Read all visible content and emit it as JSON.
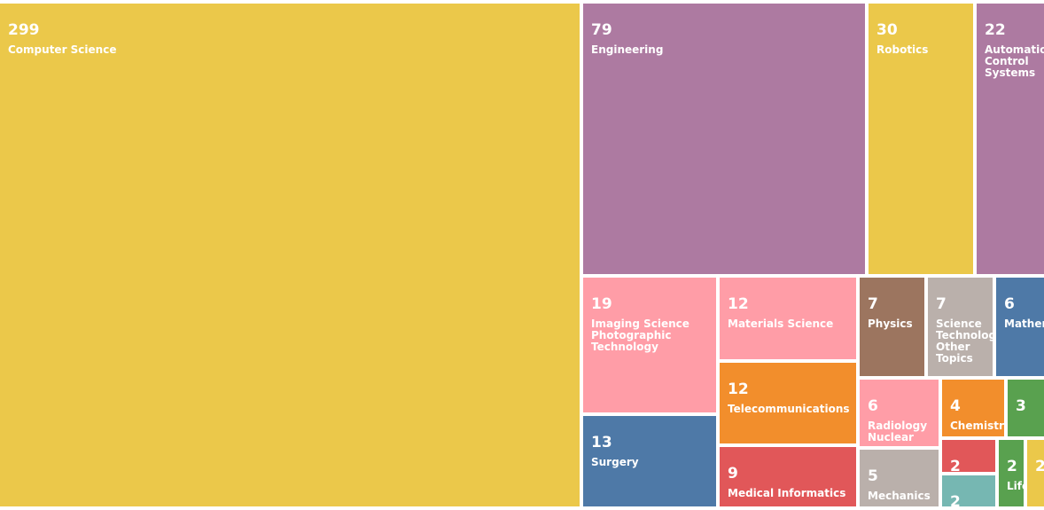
{
  "chart_data": {
    "type": "treemap",
    "colors": {
      "yellow": "#ebc84a",
      "purple": "#ad7aa1",
      "pink": "#ff9da7",
      "orange": "#f28e2c",
      "blue": "#4e79a7",
      "red": "#e15759",
      "brown": "#9c755f",
      "gray": "#bab0ab",
      "green": "#59a14f",
      "teal": "#76b7b2"
    },
    "items": [
      {
        "label": "Computer Science",
        "value": 299,
        "color": "yellow"
      },
      {
        "label": "Engineering",
        "value": 79,
        "color": "purple"
      },
      {
        "label": "Robotics",
        "value": 30,
        "color": "yellow"
      },
      {
        "label": "Automation Control Systems",
        "value": 22,
        "color": "purple"
      },
      {
        "label": "Imaging Science Photographic Technology",
        "value": 19,
        "color": "pink"
      },
      {
        "label": "Materials Science",
        "value": 12,
        "color": "pink"
      },
      {
        "label": "Telecommunications",
        "value": 12,
        "color": "orange"
      },
      {
        "label": "Surgery",
        "value": 13,
        "color": "blue"
      },
      {
        "label": "Medical Informatics",
        "value": 9,
        "color": "red"
      },
      {
        "label": "Physics",
        "value": 7,
        "color": "brown"
      },
      {
        "label": "Science Technology Other Topics",
        "value": 7,
        "color": "gray"
      },
      {
        "label": "Mathematics",
        "value": 6,
        "color": "blue"
      },
      {
        "label": "Radiology Nuclear",
        "value": 6,
        "color": "pink"
      },
      {
        "label": "Chemistry",
        "value": 4,
        "color": "orange"
      },
      {
        "label": "",
        "value": 3,
        "color": "green"
      },
      {
        "label": "Mechanics",
        "value": 5,
        "color": "gray"
      },
      {
        "label": "",
        "value": 2,
        "color": "red"
      },
      {
        "label": "",
        "value": 2,
        "color": "teal"
      },
      {
        "label": "Life",
        "value": 2,
        "color": "green"
      },
      {
        "label": "",
        "value": 2,
        "color": "yellow"
      }
    ]
  }
}
